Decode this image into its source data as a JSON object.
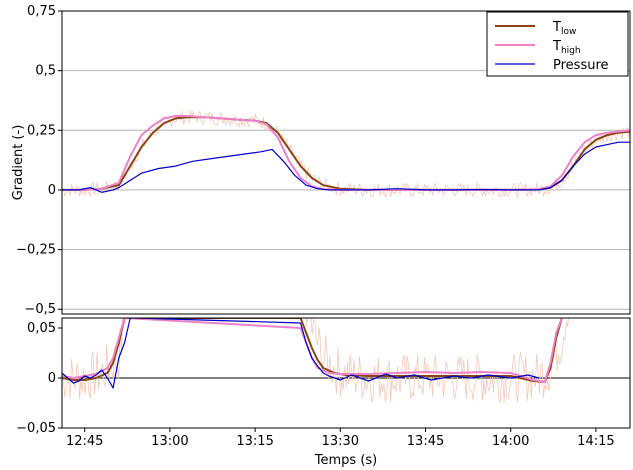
{
  "chart_data": [
    {
      "type": "line",
      "panel": "main",
      "ylabel": "Gradient (-)",
      "xlabel": "",
      "ylim": [
        -0.52,
        0.75
      ],
      "xlim": [
        "12:41",
        "14:21"
      ],
      "grid": "horizontal",
      "y_ticks": [
        "0,75",
        "0,5",
        "0,25",
        "0",
        "−0,25",
        "−0,5"
      ],
      "y_tick_values": [
        0.75,
        0.5,
        0.25,
        0,
        -0.25,
        -0.5
      ],
      "legend": {
        "placement": "top-right",
        "entries": [
          {
            "main": "T",
            "sub": "low",
            "color": "#8B4513"
          },
          {
            "main": "T",
            "sub": "high",
            "color": "#EE82C8"
          },
          {
            "main": "Pressure",
            "sub": "",
            "color": "#0000CC"
          }
        ]
      },
      "series": [
        {
          "name": "T_low",
          "color": "#8B4513",
          "x": [
            "12:41",
            "12:45",
            "12:48",
            "12:51",
            "12:53",
            "12:55",
            "12:57",
            "12:59",
            "13:01",
            "13:03",
            "13:06",
            "13:09",
            "13:12",
            "13:15",
            "13:17",
            "13:19",
            "13:21",
            "13:23",
            "13:25",
            "13:27",
            "13:30",
            "13:35",
            "13:40",
            "13:45",
            "13:50",
            "13:55",
            "14:00",
            "14:05",
            "14:07",
            "14:09",
            "14:11",
            "14:13",
            "14:15",
            "14:17",
            "14:19",
            "14:21"
          ],
          "y": [
            0.0,
            0.0,
            0.005,
            0.02,
            0.1,
            0.18,
            0.24,
            0.28,
            0.3,
            0.305,
            0.305,
            0.3,
            0.295,
            0.29,
            0.28,
            0.24,
            0.17,
            0.1,
            0.05,
            0.02,
            0.005,
            0.0,
            0.0,
            0.0,
            0.0,
            0.0,
            0.0,
            0.002,
            0.01,
            0.04,
            0.1,
            0.17,
            0.21,
            0.23,
            0.24,
            0.245
          ]
        },
        {
          "name": "T_high",
          "color": "#EE82C8",
          "x": [
            "12:41",
            "12:45",
            "12:48",
            "12:51",
            "12:53",
            "12:55",
            "12:57",
            "12:59",
            "13:01",
            "13:03",
            "13:06",
            "13:09",
            "13:12",
            "13:15",
            "13:17",
            "13:19",
            "13:21",
            "13:23",
            "13:25",
            "13:27",
            "13:30",
            "13:35",
            "13:40",
            "13:45",
            "13:50",
            "13:55",
            "14:00",
            "14:05",
            "14:07",
            "14:09",
            "14:11",
            "14:13",
            "14:15",
            "14:17",
            "14:19",
            "14:21"
          ],
          "y": [
            0.0,
            0.0,
            0.005,
            0.03,
            0.14,
            0.23,
            0.27,
            0.3,
            0.31,
            0.31,
            0.305,
            0.3,
            0.295,
            0.29,
            0.275,
            0.22,
            0.12,
            0.05,
            0.015,
            0.003,
            0.0,
            0.0,
            0.0,
            0.0,
            0.0,
            0.0,
            0.0,
            0.003,
            0.015,
            0.06,
            0.14,
            0.2,
            0.23,
            0.24,
            0.245,
            0.25
          ]
        },
        {
          "name": "Pressure",
          "color": "#0000CC",
          "x": [
            "12:41",
            "12:44",
            "12:46",
            "12:48",
            "12:50",
            "12:51",
            "12:53",
            "12:55",
            "12:58",
            "13:01",
            "13:04",
            "13:07",
            "13:10",
            "13:13",
            "13:16",
            "13:18",
            "13:20",
            "13:22",
            "13:24",
            "13:26",
            "13:28",
            "13:30",
            "13:35",
            "13:40",
            "13:45",
            "13:50",
            "13:55",
            "14:00",
            "14:05",
            "14:07",
            "14:09",
            "14:11",
            "14:13",
            "14:15",
            "14:17",
            "14:19",
            "14:21"
          ],
          "y": [
            0.0,
            0.0,
            0.01,
            -0.01,
            0.0,
            0.01,
            0.04,
            0.07,
            0.09,
            0.1,
            0.12,
            0.13,
            0.14,
            0.15,
            0.16,
            0.17,
            0.12,
            0.06,
            0.02,
            0.005,
            0.0,
            0.0,
            0.0,
            0.005,
            0.0,
            0.0,
            0.002,
            0.0,
            0.0,
            0.01,
            0.04,
            0.1,
            0.15,
            0.18,
            0.19,
            0.2,
            0.2
          ]
        }
      ]
    },
    {
      "type": "line",
      "panel": "zoom",
      "xlabel": "Temps (s)",
      "ylabel": "",
      "ylim": [
        -0.05,
        0.06
      ],
      "xlim": [
        "12:41",
        "14:21"
      ],
      "y_ticks": [
        "0,05",
        "0",
        "−0,05"
      ],
      "y_tick_values": [
        0.05,
        0,
        -0.05
      ],
      "x_ticks": [
        "12:45",
        "13:00",
        "13:15",
        "13:30",
        "13:45",
        "14:00",
        "14:15"
      ],
      "series": [
        {
          "name": "T_low",
          "color": "#8B4513",
          "x": [
            "12:41",
            "12:43",
            "12:45",
            "12:47",
            "12:49",
            "12:50",
            "12:51",
            "12:52",
            "13:23",
            "13:24",
            "13:25",
            "13:26",
            "13:27",
            "13:29",
            "13:31",
            "13:35",
            "13:40",
            "13:45",
            "13:50",
            "13:55",
            "14:00",
            "14:04",
            "14:06",
            "14:07",
            "14:08",
            "14:09"
          ],
          "y": [
            0.0,
            -0.002,
            -0.002,
            0.0,
            0.005,
            0.015,
            0.035,
            0.06,
            0.06,
            0.045,
            0.03,
            0.018,
            0.01,
            0.005,
            0.003,
            0.002,
            0.002,
            0.002,
            0.002,
            0.002,
            0.002,
            -0.003,
            -0.004,
            0.01,
            0.04,
            0.06
          ]
        },
        {
          "name": "T_high",
          "color": "#EE82C8",
          "x": [
            "12:41",
            "12:43",
            "12:45",
            "12:47",
            "12:49",
            "12:50",
            "12:51",
            "12:52",
            "13:23",
            "13:24",
            "13:25",
            "13:26",
            "13:28",
            "13:30",
            "13:35",
            "13:40",
            "13:45",
            "13:50",
            "13:55",
            "14:00",
            "14:04",
            "14:06",
            "14:07",
            "14:08",
            "14:09"
          ],
          "y": [
            0.002,
            0.0,
            0.002,
            0.004,
            0.01,
            0.02,
            0.04,
            0.06,
            0.05,
            0.035,
            0.02,
            0.01,
            0.005,
            0.004,
            0.004,
            0.005,
            0.006,
            0.005,
            0.006,
            0.005,
            -0.002,
            -0.004,
            0.015,
            0.045,
            0.06
          ]
        },
        {
          "name": "Pressure",
          "color": "#0000CC",
          "x": [
            "12:41",
            "12:42",
            "12:43",
            "12:44",
            "12:45",
            "12:46",
            "12:47",
            "12:48",
            "12:49",
            "12:50",
            "12:51",
            "12:52",
            "12:53",
            "12:54",
            "13:23",
            "13:24",
            "13:25",
            "13:26",
            "13:27",
            "13:28",
            "13:30",
            "13:32",
            "13:35",
            "13:38",
            "13:40",
            "13:43",
            "13:46",
            "13:50",
            "13:53",
            "13:56",
            "14:00",
            "14:03",
            "14:05"
          ],
          "y": [
            0.005,
            0.0,
            -0.005,
            -0.003,
            0.002,
            0.0,
            0.003,
            0.008,
            0.0,
            -0.01,
            0.02,
            0.035,
            0.06,
            0.06,
            0.055,
            0.035,
            0.02,
            0.012,
            0.005,
            0.002,
            -0.002,
            0.003,
            -0.003,
            0.004,
            0.0,
            0.003,
            -0.002,
            0.002,
            0.0,
            0.003,
            0.0,
            0.003,
            0.0
          ]
        }
      ]
    }
  ]
}
